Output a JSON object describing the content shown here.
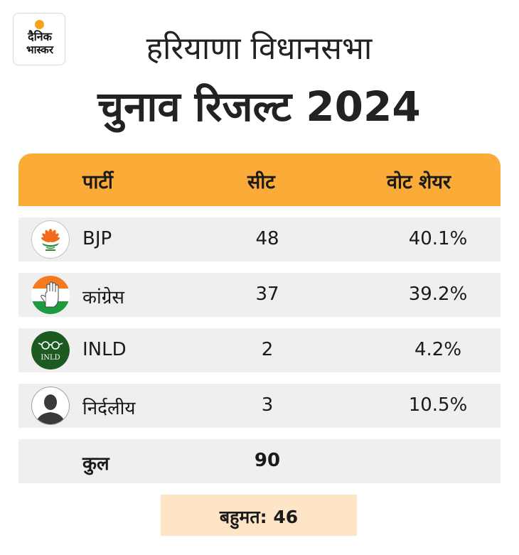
{
  "logo": {
    "line1": "दैनिक",
    "line2": "भास्कर"
  },
  "title": {
    "line1": "हरियाणा विधानसभा",
    "line2": "चुनाव रिजल्ट 2024"
  },
  "colors": {
    "header": "#fbab38",
    "row": "#efefef",
    "majority_box": "#fde5c5",
    "logo_sun": "#f7a21b"
  },
  "chart_data": {
    "type": "table",
    "columns": [
      "पार्टी",
      "सीट",
      "वोट शेयर"
    ],
    "rows": [
      {
        "party": "BJP",
        "seats": "48",
        "vote_share": "40.1%",
        "icon": "bjp-lotus-icon"
      },
      {
        "party": "कांग्रेस",
        "seats": "37",
        "vote_share": "39.2%",
        "icon": "congress-hand-icon"
      },
      {
        "party": "INLD",
        "seats": "2",
        "vote_share": "4.2%",
        "icon": "inld-spectacles-icon"
      },
      {
        "party": "निर्दलीय",
        "seats": "3",
        "vote_share": "10.5%",
        "icon": "independent-person-icon"
      }
    ],
    "total": {
      "label": "कुल",
      "seats": "90"
    },
    "majority": "बहुमत: 46"
  }
}
